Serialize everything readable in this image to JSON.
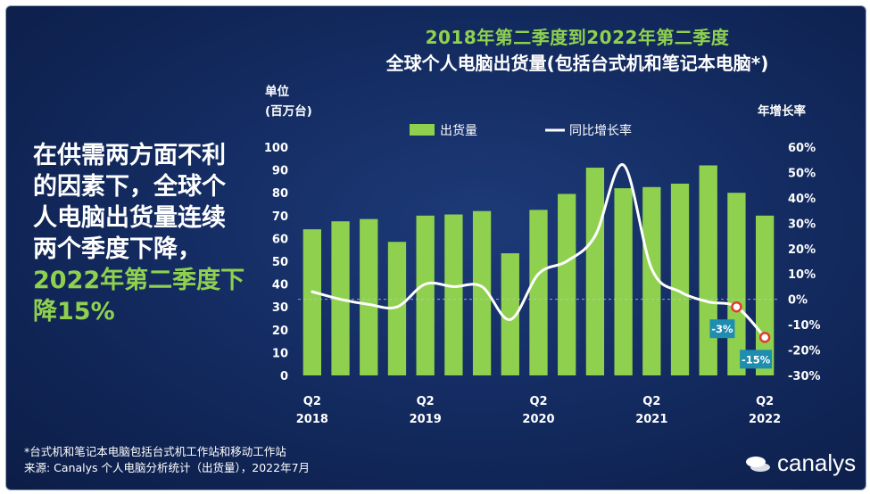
{
  "colors": {
    "bar": "#8fd14f",
    "line": "#ffffff",
    "text": "#ffffff",
    "accent": "#8fd14f",
    "marker": "#e23a2e",
    "callout": "#1f8db0"
  },
  "title": {
    "line1": "2018年第二季度到2022年第二季度",
    "line2": "全球个人电脑出货量(包括台式机和笔记本电脑*)"
  },
  "side_text": {
    "part1": "在供需两方面不利的因素下，全球个人电脑出货量连续两个季度下降，",
    "part2": "2022年第二季度下降15%"
  },
  "footnote": {
    "line1": "*台式机和笔记本电脑包括台式机工作站和移动工作站",
    "line2": "来源: Canalys 个人电脑分析统计（出货量），2022年7月"
  },
  "logo": {
    "text": "canalys",
    "icon": "canalys-logo-icon"
  },
  "chart_data": {
    "type": "bar",
    "title": "全球个人电脑出货量(包括台式机和笔记本电脑*)",
    "ylabel": "单位\n(百万台)",
    "ylabel_line1": "单位",
    "ylabel_line2": "(百万台)",
    "y2label": "年增长率",
    "ylim": [
      0,
      100
    ],
    "y2lim": [
      -30,
      60
    ],
    "yticks": [
      0,
      10,
      20,
      30,
      40,
      50,
      60,
      70,
      80,
      90,
      100
    ],
    "y2ticks": [
      "60%",
      "50%",
      "40%",
      "30%",
      "20%",
      "10%",
      "0%",
      "-10%",
      "-20%",
      "-30%"
    ],
    "legend": [
      {
        "name": "出货量",
        "kind": "bar"
      },
      {
        "name": "同比增长率",
        "kind": "line"
      }
    ],
    "legend_position": "top",
    "categories": [
      "2018Q2",
      "2018Q3",
      "2018Q4",
      "2019Q1",
      "2019Q2",
      "2019Q3",
      "2019Q4",
      "2020Q1",
      "2020Q2",
      "2020Q3",
      "2020Q4",
      "2021Q1",
      "2021Q2",
      "2021Q3",
      "2021Q4",
      "2022Q1",
      "2022Q2"
    ],
    "x_labels": [
      {
        "index": 0,
        "q": "Q2",
        "year": "2018"
      },
      {
        "index": 4,
        "q": "Q2",
        "year": "2019"
      },
      {
        "index": 8,
        "q": "Q2",
        "year": "2020"
      },
      {
        "index": 12,
        "q": "Q2",
        "year": "2021"
      },
      {
        "index": 16,
        "q": "Q2",
        "year": "2022"
      }
    ],
    "series": [
      {
        "name": "出货量",
        "type": "bar",
        "axis": "left",
        "values": [
          64,
          67.5,
          68.5,
          58.5,
          70,
          70.5,
          72,
          53.5,
          72.5,
          79.5,
          91,
          82,
          82.5,
          84,
          92,
          80,
          70
        ]
      },
      {
        "name": "同比增长率",
        "type": "line",
        "axis": "right",
        "unit": "%",
        "values": [
          3,
          0,
          -2,
          -3,
          6,
          5,
          5,
          -8,
          10,
          15,
          25,
          53,
          12,
          3,
          -1,
          -3,
          -15
        ]
      }
    ],
    "annotations": [
      {
        "index": 15,
        "text": "-3%"
      },
      {
        "index": 16,
        "text": "-15%"
      }
    ]
  }
}
